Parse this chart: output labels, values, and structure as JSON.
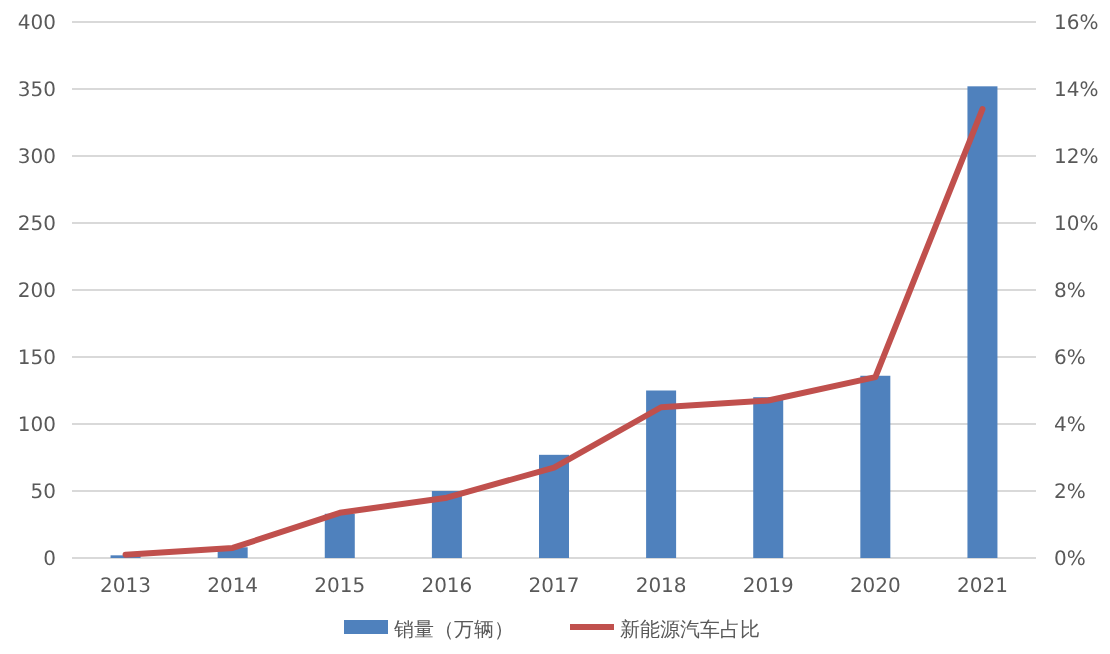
{
  "chart_data": {
    "type": "bar",
    "categories": [
      "2013",
      "2014",
      "2015",
      "2016",
      "2017",
      "2018",
      "2019",
      "2020",
      "2021"
    ],
    "series": [
      {
        "name": "销量（万辆）",
        "color": "#4f81bd",
        "values": [
          2,
          8,
          33,
          50,
          77,
          125,
          120,
          136,
          352
        ]
      },
      {
        "name": "新能源汽车占比",
        "type": "line",
        "axis": "y2",
        "color": "#c0504d",
        "values": [
          0.1,
          0.3,
          1.35,
          1.8,
          2.7,
          4.5,
          4.7,
          5.4,
          13.4
        ]
      }
    ],
    "ylim": [
      0,
      400
    ],
    "yticks": [
      0,
      50,
      100,
      150,
      200,
      250,
      300,
      350,
      400
    ],
    "y2lim": [
      0,
      16
    ],
    "y2ticks": [
      {
        "value": 0,
        "label": "0%"
      },
      {
        "value": 2,
        "label": "2%"
      },
      {
        "value": 4,
        "label": "4%"
      },
      {
        "value": 6,
        "label": "6%"
      },
      {
        "value": 8,
        "label": "8%"
      },
      {
        "value": 10,
        "label": "10%"
      },
      {
        "value": 12,
        "label": "12%"
      },
      {
        "value": 14,
        "label": "14%"
      },
      {
        "value": 16,
        "label": "16%"
      }
    ],
    "grid": "y",
    "legend": "bottom"
  }
}
